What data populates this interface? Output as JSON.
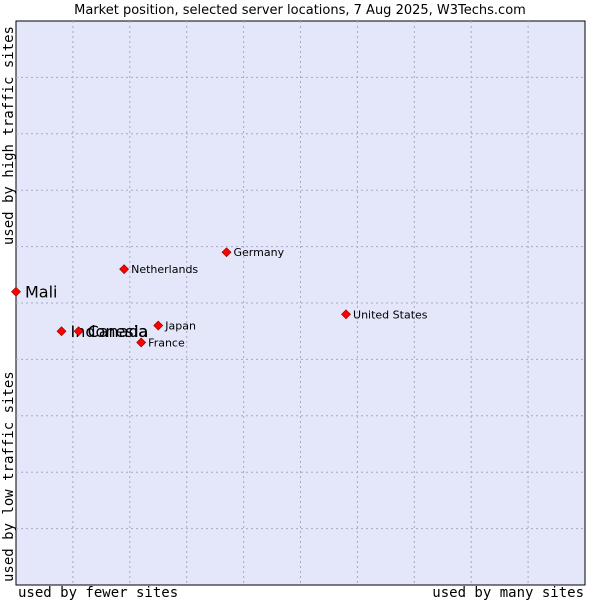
{
  "chart_data": {
    "type": "scatter",
    "title": "Market position, selected server locations, 7 Aug 2025, W3Techs.com",
    "xlabel_left": "used by fewer sites",
    "xlabel_right": "used by many sites",
    "ylabel_top": "used by high traffic sites",
    "ylabel_bottom": "used by low traffic sites",
    "xlim": [
      0,
      100
    ],
    "ylim": [
      0,
      100
    ],
    "grid": true,
    "marker_color": "#ff0000",
    "background_color": "#e4e6f9",
    "points": [
      {
        "name": "Mali",
        "x": 0,
        "y": 52,
        "highlight": true
      },
      {
        "name": "Indonesia",
        "x": 8,
        "y": 45,
        "highlight": true
      },
      {
        "name": "Canada",
        "x": 11,
        "y": 45,
        "highlight": true
      },
      {
        "name": "Netherlands",
        "x": 19,
        "y": 56,
        "highlight": false
      },
      {
        "name": "Germany",
        "x": 37,
        "y": 59,
        "highlight": false
      },
      {
        "name": "Japan",
        "x": 25,
        "y": 46,
        "highlight": false
      },
      {
        "name": "France",
        "x": 22,
        "y": 43,
        "highlight": false
      },
      {
        "name": "United States",
        "x": 58,
        "y": 48,
        "highlight": false
      }
    ]
  }
}
